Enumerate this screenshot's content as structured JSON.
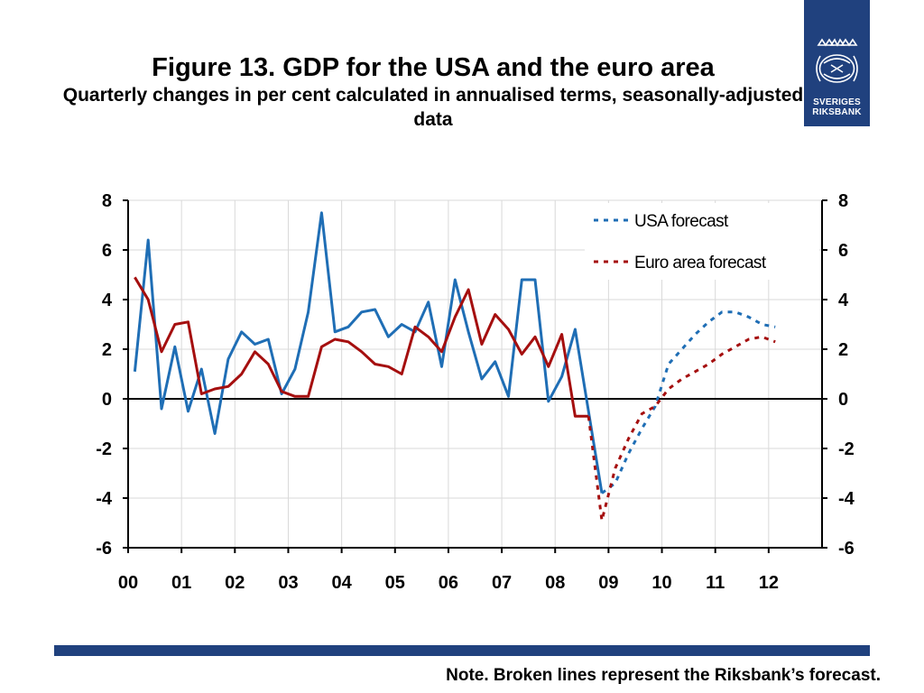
{
  "slide": {
    "title": "Figure 13. GDP for the USA and the euro area",
    "subtitle": "Quarterly changes in per cent calculated in annualised terms, seasonally-adjusted data",
    "note": "Note. Broken lines represent the Riksbank’s forecast.",
    "logo_line1": "SVERIGES",
    "logo_line2": "RIKSBANK",
    "brand_color": "#20417e"
  },
  "chart_data": {
    "type": "line",
    "title": "",
    "xlabel": "",
    "ylabel": "",
    "ylim": [
      -6,
      8
    ],
    "yticks": [
      "8",
      "6",
      "4",
      "2",
      "0",
      "-2",
      "-4",
      "-6"
    ],
    "ytick_values": [
      8,
      6,
      4,
      2,
      0,
      -2,
      -4,
      -6
    ],
    "xlim": [
      2000,
      2013
    ],
    "xticks": [
      "00",
      "01",
      "02",
      "03",
      "04",
      "05",
      "06",
      "07",
      "08",
      "09",
      "10",
      "11",
      "12"
    ],
    "xtick_values": [
      2000,
      2001,
      2002,
      2003,
      2004,
      2005,
      2006,
      2007,
      2008,
      2009,
      2010,
      2011,
      2012
    ],
    "grid": true,
    "legend_position": "top-right",
    "series": [
      {
        "name": "",
        "color": "#1f6eb5",
        "style": "solid",
        "x": [
          2000.125,
          2000.375,
          2000.625,
          2000.875,
          2001.125,
          2001.375,
          2001.625,
          2001.875,
          2002.125,
          2002.375,
          2002.625,
          2002.875,
          2003.125,
          2003.375,
          2003.625,
          2003.875,
          2004.125,
          2004.375,
          2004.625,
          2004.875,
          2005.125,
          2005.375,
          2005.625,
          2005.875,
          2006.125,
          2006.375,
          2006.625,
          2006.875,
          2007.125,
          2007.375,
          2007.625,
          2007.875,
          2008.125,
          2008.375,
          2008.625,
          2008.875
        ],
        "values": [
          1.1,
          6.4,
          -0.4,
          2.1,
          -0.5,
          1.2,
          -1.4,
          1.6,
          2.7,
          2.2,
          2.4,
          0.2,
          1.2,
          3.5,
          7.5,
          2.7,
          2.9,
          3.5,
          3.6,
          2.5,
          3.0,
          2.7,
          3.9,
          1.3,
          4.8,
          2.7,
          0.8,
          1.5,
          0.1,
          4.8,
          4.8,
          -0.1,
          0.9,
          2.8,
          -0.5,
          -3.8
        ]
      },
      {
        "name": "",
        "color": "#a50f0f",
        "style": "solid",
        "x": [
          2000.125,
          2000.375,
          2000.625,
          2000.875,
          2001.125,
          2001.375,
          2001.625,
          2001.875,
          2002.125,
          2002.375,
          2002.625,
          2002.875,
          2003.125,
          2003.375,
          2003.625,
          2003.875,
          2004.125,
          2004.375,
          2004.625,
          2004.875,
          2005.125,
          2005.375,
          2005.625,
          2005.875,
          2006.125,
          2006.375,
          2006.625,
          2006.875,
          2007.125,
          2007.375,
          2007.625,
          2007.875,
          2008.125,
          2008.375,
          2008.625
        ],
        "values": [
          4.9,
          4.0,
          1.9,
          3.0,
          3.1,
          0.2,
          0.4,
          0.5,
          1.0,
          1.9,
          1.4,
          0.3,
          0.1,
          0.1,
          2.1,
          2.4,
          2.3,
          1.9,
          1.4,
          1.3,
          1.0,
          2.9,
          2.5,
          1.9,
          3.3,
          4.4,
          2.2,
          3.4,
          2.8,
          1.8,
          2.5,
          1.3,
          2.6,
          -0.7,
          -0.7
        ]
      },
      {
        "name": "USA forecast",
        "color": "#1f6eb5",
        "style": "dashed",
        "x": [
          2008.875,
          2009.125,
          2009.375,
          2009.625,
          2009.875,
          2010.125,
          2010.375,
          2010.625,
          2010.875,
          2011.125,
          2011.375,
          2011.625,
          2011.875,
          2012.125
        ],
        "values": [
          -3.8,
          -3.4,
          -2.2,
          -1.2,
          -0.3,
          1.4,
          2.0,
          2.6,
          3.1,
          3.5,
          3.5,
          3.3,
          3.0,
          2.9
        ]
      },
      {
        "name": "Euro area forecast",
        "color": "#a50f0f",
        "style": "dashed",
        "x": [
          2008.625,
          2008.875,
          2009.125,
          2009.375,
          2009.625,
          2009.875,
          2010.125,
          2010.375,
          2010.625,
          2010.875,
          2011.125,
          2011.375,
          2011.625,
          2011.875,
          2012.125
        ],
        "values": [
          -0.7,
          -4.9,
          -2.8,
          -1.6,
          -0.6,
          -0.3,
          0.4,
          0.8,
          1.1,
          1.4,
          1.8,
          2.1,
          2.4,
          2.5,
          2.3
        ]
      }
    ],
    "legend": [
      {
        "label": "USA forecast",
        "color": "#1f6eb5"
      },
      {
        "label": "Euro area forecast",
        "color": "#a50f0f"
      }
    ]
  }
}
